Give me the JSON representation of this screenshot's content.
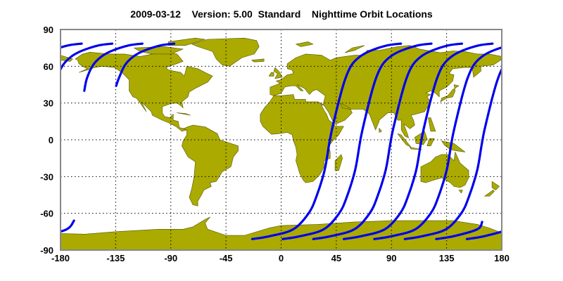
{
  "title": "2009-03-12    Version: 5.00  Standard    Nighttime Orbit Locations",
  "colors": {
    "land": "#aaaa00",
    "coast": "#555500",
    "track": "#0000ee",
    "grid": "#000000",
    "frame": "#888888"
  },
  "chart_data": {
    "type": "map-line",
    "projection": "equirectangular",
    "xlim": [
      -180,
      180
    ],
    "ylim": [
      -90,
      90
    ],
    "x_ticks": [
      -180,
      -135,
      -90,
      -45,
      0,
      45,
      90,
      135,
      180
    ],
    "y_ticks": [
      90,
      60,
      30,
      0,
      -30,
      -60,
      -90
    ],
    "grid": true,
    "tracks": [
      [
        [
          -23.6,
          -81
        ],
        [
          -8.6,
          -78.5
        ],
        [
          10,
          -73
        ],
        [
          22.4,
          -60
        ],
        [
          28.7,
          -46.5
        ],
        [
          35.4,
          -25
        ],
        [
          39,
          -4.5
        ],
        [
          41.4,
          8
        ],
        [
          47.7,
          34
        ],
        [
          52.4,
          50
        ],
        [
          57.5,
          61
        ],
        [
          64.4,
          68
        ],
        [
          73,
          72.7
        ],
        [
          86.4,
          77
        ],
        [
          97.7,
          78.5
        ]
      ],
      [
        [
          1.3,
          -81
        ],
        [
          16.3,
          -78.5
        ],
        [
          34.9,
          -73
        ],
        [
          47.3,
          -60
        ],
        [
          53.6,
          -46.5
        ],
        [
          60.3,
          -25
        ],
        [
          63.9,
          -4.5
        ],
        [
          66.3,
          8
        ],
        [
          72.6,
          34
        ],
        [
          77.3,
          50
        ],
        [
          82.4,
          61
        ],
        [
          89.3,
          68
        ],
        [
          97.9,
          72.7
        ],
        [
          111.3,
          77
        ],
        [
          122.6,
          78.5
        ]
      ],
      [
        [
          26.2,
          -81
        ],
        [
          41.2,
          -78.5
        ],
        [
          59.8,
          -73
        ],
        [
          72.2,
          -60
        ],
        [
          78.5,
          -46.5
        ],
        [
          85.2,
          -25
        ],
        [
          88.8,
          -4.5
        ],
        [
          91.2,
          8
        ],
        [
          97.5,
          34
        ],
        [
          102.2,
          50
        ],
        [
          107.3,
          61
        ],
        [
          114.2,
          68
        ],
        [
          122.8,
          72.7
        ],
        [
          136.2,
          77
        ],
        [
          147.5,
          78.5
        ]
      ],
      [
        [
          51.1,
          -81
        ],
        [
          66.1,
          -78.5
        ],
        [
          84.7,
          -73
        ],
        [
          97.1,
          -60
        ],
        [
          103.4,
          -46.5
        ],
        [
          110.1,
          -25
        ],
        [
          113.7,
          -4.5
        ],
        [
          116.1,
          8
        ],
        [
          122.4,
          34
        ],
        [
          127.1,
          50
        ],
        [
          132.2,
          61
        ],
        [
          139.1,
          68
        ],
        [
          147.7,
          72.7
        ],
        [
          161.1,
          77
        ],
        [
          172.4,
          78.5
        ]
      ],
      [
        [
          76,
          -81
        ],
        [
          91,
          -78.5
        ],
        [
          109.6,
          -73
        ],
        [
          122,
          -60
        ],
        [
          128.3,
          -46.5
        ],
        [
          135,
          -25
        ],
        [
          138.6,
          -4.5
        ],
        [
          141,
          8
        ],
        [
          147.3,
          34
        ],
        [
          152,
          50
        ],
        [
          157.1,
          61
        ],
        [
          164,
          68
        ],
        [
          172.6,
          72.7
        ],
        [
          186,
          77
        ],
        [
          197.3,
          78.5
        ]
      ],
      [
        [
          100.9,
          -81
        ],
        [
          115.9,
          -78.5
        ],
        [
          134.5,
          -73
        ],
        [
          146.9,
          -60
        ],
        [
          153.2,
          -46.5
        ],
        [
          159.9,
          -25
        ],
        [
          163.5,
          -4.5
        ],
        [
          165.9,
          8
        ],
        [
          172.2,
          34
        ],
        [
          176.9,
          50
        ],
        [
          182,
          61
        ],
        [
          188.9,
          68
        ],
        [
          197.5,
          72.7
        ],
        [
          210.9,
          77
        ],
        [
          222.2,
          78.5
        ]
      ],
      [
        [
          126.5,
          -81
        ],
        [
          141.5,
          -78.5
        ],
        [
          160.1,
          -73
        ],
        [
          164,
          -67
        ]
      ],
      [
        [
          199.4,
          40
        ],
        [
          201.5,
          50
        ],
        [
          206.6,
          61
        ],
        [
          213.5,
          68
        ],
        [
          222.1,
          72.7
        ],
        [
          235.5,
          77
        ],
        [
          246.8,
          78.5
        ]
      ],
      [
        [
          151.5,
          -81
        ],
        [
          166.5,
          -78.5
        ],
        [
          185.1,
          -73
        ],
        [
          191,
          -66
        ]
      ],
      [
        [
          225.4,
          44
        ],
        [
          227.5,
          50
        ],
        [
          232.6,
          61
        ],
        [
          239.5,
          68
        ],
        [
          248.1,
          72.7
        ],
        [
          261.5,
          77
        ],
        [
          272.8,
          78.5
        ]
      ]
    ]
  }
}
